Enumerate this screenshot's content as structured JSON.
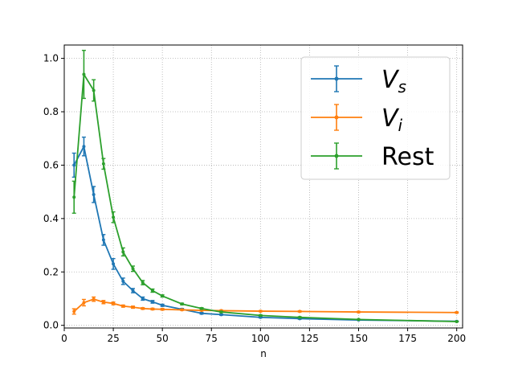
{
  "chart_data": {
    "type": "line",
    "xlabel": "n",
    "ylabel": "",
    "xlim": [
      0,
      203
    ],
    "ylim": [
      -0.01,
      1.05
    ],
    "xticks": [
      0,
      25,
      50,
      75,
      100,
      125,
      150,
      175,
      200
    ],
    "xtick_labels": [
      "0",
      "25",
      "50",
      "75",
      "100",
      "125",
      "150",
      "175",
      "200"
    ],
    "yticks": [
      0.0,
      0.2,
      0.4,
      0.6,
      0.8,
      1.0
    ],
    "ytick_labels": [
      "0.0",
      "0.2",
      "0.4",
      "0.6",
      "0.8",
      "1.0"
    ],
    "grid": true,
    "legend_position": "top-right",
    "series": [
      {
        "name": "V",
        "subscript": "s",
        "color": "#1f77b4",
        "points": [
          {
            "x": 5,
            "y": 0.6,
            "err": 0.045
          },
          {
            "x": 10,
            "y": 0.67,
            "err": 0.035
          },
          {
            "x": 15,
            "y": 0.49,
            "err": 0.03
          },
          {
            "x": 20,
            "y": 0.32,
            "err": 0.02
          },
          {
            "x": 25,
            "y": 0.23,
            "err": 0.02
          },
          {
            "x": 30,
            "y": 0.165,
            "err": 0.012
          },
          {
            "x": 35,
            "y": 0.13,
            "err": 0.008
          },
          {
            "x": 40,
            "y": 0.1,
            "err": 0.006
          },
          {
            "x": 45,
            "y": 0.088,
            "err": 0.005
          },
          {
            "x": 50,
            "y": 0.075,
            "err": 0.004
          },
          {
            "x": 60,
            "y": 0.06,
            "err": 0.003
          },
          {
            "x": 70,
            "y": 0.045,
            "err": 0.003
          },
          {
            "x": 80,
            "y": 0.04,
            "err": 0.002
          },
          {
            "x": 100,
            "y": 0.03,
            "err": 0.002
          },
          {
            "x": 120,
            "y": 0.025,
            "err": 0.002
          },
          {
            "x": 150,
            "y": 0.02,
            "err": 0.001
          },
          {
            "x": 200,
            "y": 0.015,
            "err": 0.001
          }
        ]
      },
      {
        "name": "V",
        "subscript": "i",
        "color": "#ff7f0e",
        "points": [
          {
            "x": 5,
            "y": 0.052,
            "err": 0.01
          },
          {
            "x": 10,
            "y": 0.085,
            "err": 0.012
          },
          {
            "x": 15,
            "y": 0.098,
            "err": 0.008
          },
          {
            "x": 20,
            "y": 0.087,
            "err": 0.006
          },
          {
            "x": 25,
            "y": 0.082,
            "err": 0.005
          },
          {
            "x": 30,
            "y": 0.072,
            "err": 0.004
          },
          {
            "x": 35,
            "y": 0.068,
            "err": 0.004
          },
          {
            "x": 40,
            "y": 0.063,
            "err": 0.003
          },
          {
            "x": 45,
            "y": 0.061,
            "err": 0.003
          },
          {
            "x": 50,
            "y": 0.06,
            "err": 0.003
          },
          {
            "x": 60,
            "y": 0.058,
            "err": 0.002
          },
          {
            "x": 70,
            "y": 0.056,
            "err": 0.002
          },
          {
            "x": 80,
            "y": 0.055,
            "err": 0.002
          },
          {
            "x": 100,
            "y": 0.053,
            "err": 0.002
          },
          {
            "x": 120,
            "y": 0.052,
            "err": 0.002
          },
          {
            "x": 150,
            "y": 0.05,
            "err": 0.002
          },
          {
            "x": 200,
            "y": 0.048,
            "err": 0.002
          }
        ]
      },
      {
        "name": "Rest",
        "subscript": "",
        "color": "#2ca02c",
        "points": [
          {
            "x": 5,
            "y": 0.48,
            "err": 0.06
          },
          {
            "x": 10,
            "y": 0.94,
            "err": 0.09
          },
          {
            "x": 15,
            "y": 0.88,
            "err": 0.04
          },
          {
            "x": 20,
            "y": 0.605,
            "err": 0.02
          },
          {
            "x": 25,
            "y": 0.405,
            "err": 0.02
          },
          {
            "x": 30,
            "y": 0.275,
            "err": 0.015
          },
          {
            "x": 35,
            "y": 0.212,
            "err": 0.01
          },
          {
            "x": 40,
            "y": 0.16,
            "err": 0.008
          },
          {
            "x": 45,
            "y": 0.13,
            "err": 0.006
          },
          {
            "x": 50,
            "y": 0.11,
            "err": 0.004
          },
          {
            "x": 60,
            "y": 0.08,
            "err": 0.003
          },
          {
            "x": 70,
            "y": 0.063,
            "err": 0.003
          },
          {
            "x": 80,
            "y": 0.05,
            "err": 0.002
          },
          {
            "x": 100,
            "y": 0.037,
            "err": 0.002
          },
          {
            "x": 120,
            "y": 0.03,
            "err": 0.002
          },
          {
            "x": 150,
            "y": 0.022,
            "err": 0.001
          },
          {
            "x": 200,
            "y": 0.014,
            "err": 0.001
          }
        ]
      }
    ]
  }
}
